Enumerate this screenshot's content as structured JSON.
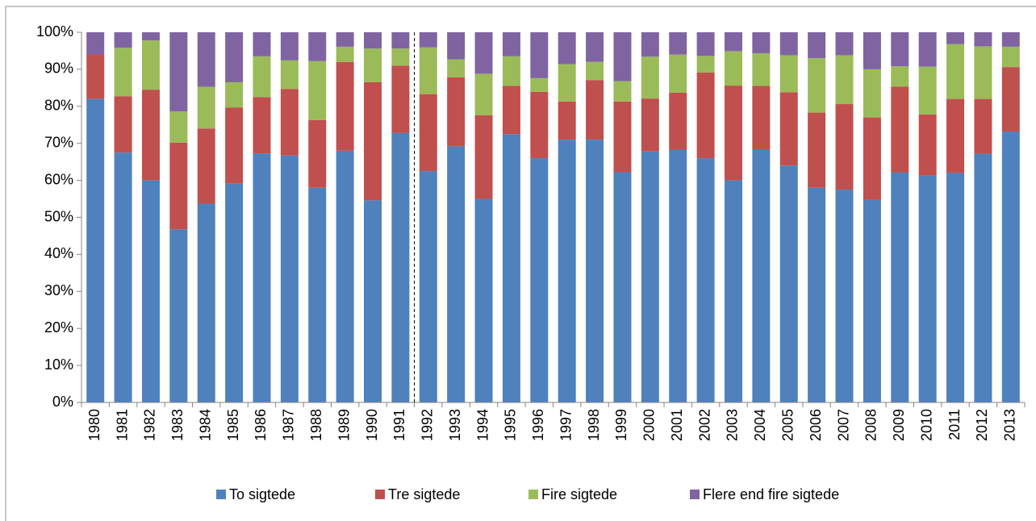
{
  "chart_data": {
    "type": "stacked_bar",
    "categories": [
      "1980",
      "1981",
      "1982",
      "1983",
      "1984",
      "1985",
      "1986",
      "1987",
      "1988",
      "1989",
      "1990",
      "1991",
      "1992",
      "1993",
      "1994",
      "1995",
      "1996",
      "1997",
      "1998",
      "1999",
      "2000",
      "2001",
      "2002",
      "2003",
      "2004",
      "2005",
      "2006",
      "2007",
      "2008",
      "2009",
      "2010",
      "2011",
      "2012",
      "2013"
    ],
    "series": [
      {
        "name": "To sigtede",
        "color": "#4f81bd",
        "values": [
          82,
          67.5,
          60,
          46.8,
          53.7,
          59.1,
          67.3,
          66.7,
          58,
          68,
          54.6,
          72.8,
          62.5,
          69.2,
          55,
          72.5,
          66,
          71,
          71,
          62.2,
          67.8,
          68.3,
          66,
          60,
          68.2,
          64,
          58,
          57.5,
          54.7,
          62.1,
          61.3,
          62,
          67.2,
          73.2
        ]
      },
      {
        "name": "Tre sigtede",
        "color": "#c0504d",
        "values": [
          12,
          15.2,
          24.5,
          23.4,
          20.3,
          20.6,
          15.2,
          18,
          18.3,
          24,
          31.9,
          18.2,
          20.8,
          18.6,
          22.6,
          13,
          17.9,
          10.3,
          16.1,
          19.1,
          14.3,
          15.4,
          23.1,
          25.6,
          17.3,
          19.8,
          20.3,
          23.1,
          22.3,
          23.2,
          16.5,
          20,
          14.8,
          17.4
        ]
      },
      {
        "name": "Fire sigtede",
        "color": "#9bbb59",
        "values": [
          0,
          13.1,
          13.3,
          8.4,
          11.3,
          6.8,
          11,
          7.7,
          15.9,
          4.1,
          9.1,
          4.6,
          12.6,
          4.9,
          11.2,
          8,
          3.7,
          10.1,
          4.9,
          5.5,
          11.3,
          10.3,
          4.5,
          9.3,
          8.8,
          10,
          14.7,
          13.2,
          13,
          5.5,
          12.9,
          14.8,
          14.2,
          5.5
        ]
      },
      {
        "name": "Flere end fire sigtede",
        "color": "#8064a2",
        "values": [
          6,
          4.2,
          2.2,
          21.4,
          14.7,
          13.5,
          6.5,
          7.6,
          7.8,
          3.9,
          4.4,
          4.4,
          4.1,
          7.3,
          11.2,
          6.5,
          12.4,
          8.6,
          8,
          13.2,
          6.6,
          6,
          6.4,
          5.1,
          5.7,
          6.2,
          7,
          6.2,
          10,
          9.2,
          9.3,
          3.2,
          3.8,
          3.9
        ]
      }
    ],
    "ylim": [
      0,
      100
    ],
    "yticks": [
      {
        "value": 0,
        "label": "0%"
      },
      {
        "value": 10,
        "label": "10%"
      },
      {
        "value": 20,
        "label": "20%"
      },
      {
        "value": 30,
        "label": "30%"
      },
      {
        "value": 40,
        "label": "40%"
      },
      {
        "value": 50,
        "label": "50%"
      },
      {
        "value": 60,
        "label": "60%"
      },
      {
        "value": 70,
        "label": "70%"
      },
      {
        "value": 80,
        "label": "80%"
      },
      {
        "value": 90,
        "label": "90%"
      },
      {
        "value": 100,
        "label": "100%"
      }
    ],
    "legend": "bottom"
  }
}
